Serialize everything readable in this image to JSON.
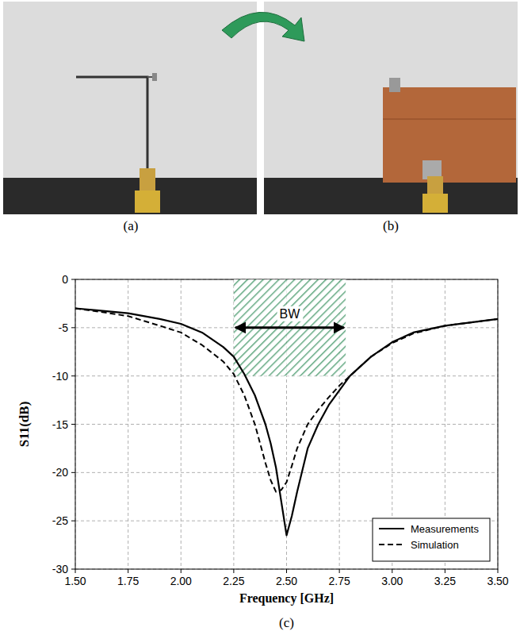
{
  "captions": [
    "(a)",
    "(b)",
    "(c)"
  ],
  "chart_data": {
    "type": "line",
    "x_label": "Frequency [GHz]",
    "y_label": "S11(dB)",
    "x": [
      1.5,
      1.6,
      1.75,
      1.9,
      2.0,
      2.1,
      2.2,
      2.25,
      2.3,
      2.35,
      2.4,
      2.425,
      2.45,
      2.475,
      2.5,
      2.525,
      2.55,
      2.6,
      2.65,
      2.7,
      2.75,
      2.8,
      2.9,
      3.0,
      3.1,
      3.25,
      3.5
    ],
    "series": [
      {
        "name": "Measurements",
        "color": "#000000",
        "line_style": "solid",
        "values": [
          -3,
          -3.2,
          -3.5,
          -4.1,
          -4.6,
          -5.5,
          -7,
          -8,
          -9.8,
          -12,
          -15,
          -17,
          -19.5,
          -23,
          -26.5,
          -24.5,
          -22,
          -17.5,
          -15,
          -13,
          -11.5,
          -10,
          -8,
          -6.5,
          -5.5,
          -4.8,
          -4.1
        ]
      },
      {
        "name": "Simulation",
        "color": "#000000",
        "line_style": "dashed",
        "values": [
          -3,
          -3.3,
          -3.8,
          -4.8,
          -5.5,
          -6.8,
          -8.5,
          -9.8,
          -12,
          -15,
          -19,
          -20.8,
          -22,
          -21.8,
          -21,
          -19.3,
          -17.5,
          -15,
          -13.5,
          -12.2,
          -11,
          -10,
          -8,
          -6.6,
          -5.6,
          -4.8,
          -4.1
        ]
      }
    ],
    "xlim": [
      1.5,
      3.5
    ],
    "ylim": [
      -30,
      0
    ],
    "xticks": [
      {
        "value": 1.5,
        "label": "1.50"
      },
      {
        "value": 1.75,
        "label": "1.75"
      },
      {
        "value": 2.0,
        "label": "2.00"
      },
      {
        "value": 2.25,
        "label": "2.25"
      },
      {
        "value": 2.5,
        "label": "2.50"
      },
      {
        "value": 2.75,
        "label": "2.75"
      },
      {
        "value": 3.0,
        "label": "3.00"
      },
      {
        "value": 3.25,
        "label": "3.25"
      },
      {
        "value": 3.5,
        "label": "3.50"
      }
    ],
    "yticks": [
      -30,
      -25,
      -20,
      -15,
      -10,
      -5,
      0
    ],
    "grid": true,
    "legend": "lower right",
    "annotations": [
      {
        "text": "BW",
        "x": [
          2.25,
          2.78
        ],
        "y": [
          -10,
          0
        ],
        "color": "#2e8b57"
      }
    ]
  }
}
